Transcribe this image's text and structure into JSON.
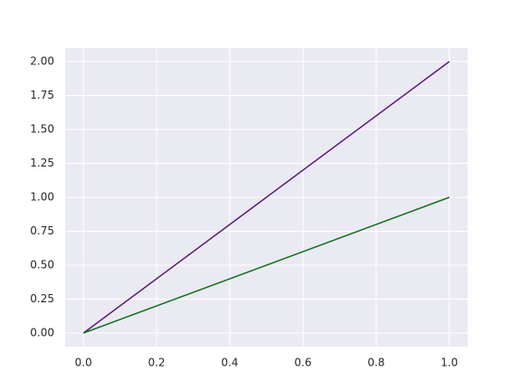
{
  "chart_data": {
    "type": "line",
    "x": [
      0,
      1
    ],
    "series": [
      {
        "color": "#5c1a78",
        "values": [
          0,
          2
        ]
      },
      {
        "color": "#157020",
        "values": [
          0,
          1
        ]
      }
    ],
    "xlim": [
      -0.05,
      1.05
    ],
    "ylim": [
      -0.1,
      2.1
    ],
    "xticks": [
      {
        "value": 0,
        "label": "0.0"
      },
      {
        "value": 0.2,
        "label": "0.2"
      },
      {
        "value": 0.4,
        "label": "0.4"
      },
      {
        "value": 0.6,
        "label": "0.6"
      },
      {
        "value": 0.8,
        "label": "0.8"
      },
      {
        "value": 1,
        "label": "1.0"
      }
    ],
    "yticks": [
      {
        "value": 0,
        "label": "0.00"
      },
      {
        "value": 0.25,
        "label": "0.25"
      },
      {
        "value": 0.5,
        "label": "0.50"
      },
      {
        "value": 0.75,
        "label": "0.75"
      },
      {
        "value": 1,
        "label": "1.00"
      },
      {
        "value": 1.25,
        "label": "1.25"
      },
      {
        "value": 1.5,
        "label": "1.50"
      },
      {
        "value": 1.75,
        "label": "1.75"
      },
      {
        "value": 2,
        "label": "2.00"
      }
    ],
    "grid": true,
    "background": "#eaeaf2"
  }
}
